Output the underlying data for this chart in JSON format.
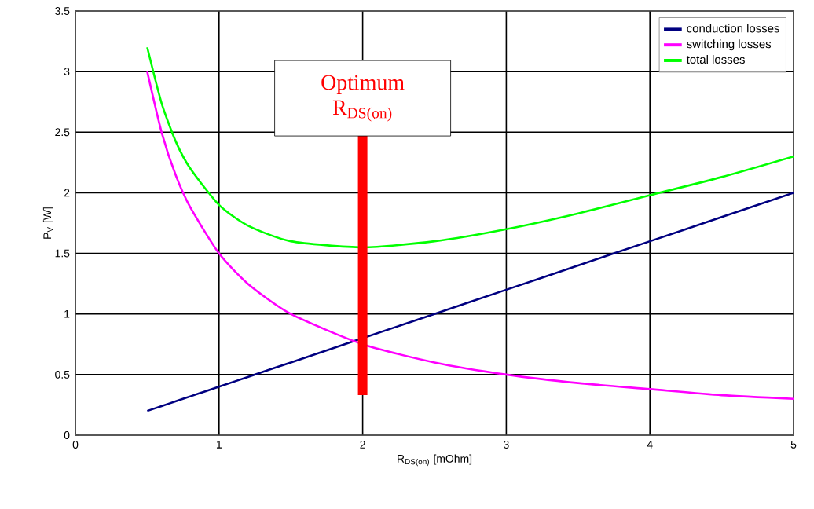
{
  "chart_data": {
    "type": "line",
    "xlabel": "R$_{DS(on)}$ [mOhm]",
    "ylabel": "P$_{V}$ [W]",
    "x": [
      0.5,
      0.6,
      0.7,
      0.8,
      1,
      1.2,
      1.5,
      2,
      2.5,
      3,
      3.5,
      4,
      4.5,
      5
    ],
    "series": [
      {
        "name": "conduction losses",
        "color": "#000080",
        "values": [
          0.2,
          0.24,
          0.28,
          0.32,
          0.4,
          0.48,
          0.6,
          0.8,
          1.0,
          1.2,
          1.4,
          1.6,
          1.8,
          2.0
        ]
      },
      {
        "name": "switching losses",
        "color": "#ff00ff",
        "values": [
          3.0,
          2.5,
          2.14,
          1.88,
          1.5,
          1.25,
          1.0,
          0.75,
          0.6,
          0.5,
          0.43,
          0.38,
          0.33,
          0.3
        ]
      },
      {
        "name": "total losses",
        "color": "#00ff00",
        "values": [
          3.2,
          2.74,
          2.42,
          2.2,
          1.9,
          1.73,
          1.6,
          1.55,
          1.6,
          1.7,
          1.83,
          1.98,
          2.13,
          2.3
        ]
      }
    ],
    "xlim": [
      0,
      5
    ],
    "ylim": [
      0,
      3.5
    ],
    "xticks": [
      0,
      1,
      2,
      3,
      4,
      5
    ],
    "yticks": [
      0,
      0.5,
      1,
      1.5,
      2,
      2.5,
      3,
      3.5
    ],
    "grid": true,
    "legend": "top right",
    "marker": "none",
    "line_style": "solid",
    "ref_lines": [
      {
        "axis": "x",
        "value": 2,
        "label": "Optimum R$_{DS(on)}$",
        "color": "#ff0000"
      }
    ]
  }
}
